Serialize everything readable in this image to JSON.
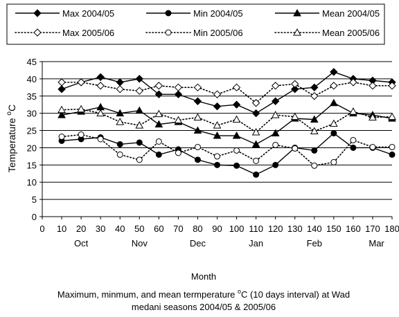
{
  "chart_data": {
    "type": "line",
    "xlabel": "Month",
    "ylabel": "Temperature °C",
    "ylabel_parts": [
      "Temperature ",
      "o",
      "C"
    ],
    "caption_line1_parts": [
      "Maximum, minmum, and mean termperature ",
      "o",
      "C (10 days interval) at Wad"
    ],
    "caption_line2": "medani seasons 2004/05 & 2005/06",
    "xlim": [
      0,
      180
    ],
    "ylim": [
      0,
      45
    ],
    "x_ticks": [
      0,
      10,
      20,
      30,
      40,
      50,
      60,
      70,
      80,
      90,
      100,
      110,
      120,
      130,
      140,
      150,
      160,
      170,
      180
    ],
    "y_ticks": [
      0,
      5,
      10,
      15,
      20,
      25,
      30,
      35,
      40,
      45
    ],
    "month_labels": [
      {
        "label": "Oct",
        "x": 20
      },
      {
        "label": "Nov",
        "x": 50
      },
      {
        "label": "Dec",
        "x": 80
      },
      {
        "label": "Jan",
        "x": 110
      },
      {
        "label": "Feb",
        "x": 140
      },
      {
        "label": "Mar",
        "x": 172
      }
    ],
    "grid": "horizontal",
    "legend_position": "top",
    "x": [
      10,
      20,
      30,
      40,
      50,
      60,
      70,
      80,
      90,
      100,
      110,
      120,
      130,
      140,
      150,
      160,
      170,
      180
    ],
    "series": [
      {
        "name": "Max 2004/05",
        "line": "solid",
        "marker": "diamond",
        "fill": "filled",
        "values": [
          37.0,
          39.0,
          40.5,
          39.0,
          40.0,
          35.5,
          35.5,
          33.5,
          32.0,
          32.5,
          30.0,
          33.5,
          37.0,
          37.5,
          42.0,
          40.0,
          39.5,
          39.0
        ]
      },
      {
        "name": "Min 2004/05",
        "line": "solid",
        "marker": "circle",
        "fill": "filled",
        "values": [
          22.0,
          22.5,
          23.0,
          21.0,
          21.5,
          18.0,
          19.5,
          16.5,
          15.0,
          14.8,
          12.2,
          15.0,
          20.0,
          19.2,
          24.2,
          20.0,
          20.0,
          18.0
        ]
      },
      {
        "name": "Mean 2004/05",
        "line": "solid",
        "marker": "triangle",
        "fill": "filled",
        "values": [
          29.5,
          30.5,
          31.8,
          30.0,
          30.8,
          26.8,
          27.5,
          25.0,
          23.5,
          23.5,
          21.0,
          24.2,
          28.5,
          28.2,
          33.0,
          30.0,
          29.5,
          28.5
        ]
      },
      {
        "name": "Max 2005/06",
        "line": "dotted",
        "marker": "diamond",
        "fill": "open",
        "values": [
          39.0,
          39.0,
          38.0,
          37.0,
          36.5,
          38.0,
          37.5,
          37.5,
          35.5,
          37.5,
          33.0,
          38.0,
          38.5,
          35.0,
          38.0,
          39.0,
          38.0,
          38.0
        ]
      },
      {
        "name": "Min 2005/06",
        "line": "dotted",
        "marker": "circle",
        "fill": "open",
        "values": [
          23.2,
          23.8,
          22.5,
          18.0,
          16.5,
          21.8,
          18.5,
          20.2,
          17.5,
          19.2,
          16.2,
          20.8,
          19.8,
          14.8,
          15.8,
          22.2,
          20.2,
          20.2
        ]
      },
      {
        "name": "Mean 2005/06",
        "line": "dotted",
        "marker": "triangle",
        "fill": "open",
        "values": [
          31.0,
          31.2,
          30.0,
          27.5,
          26.5,
          29.8,
          28.0,
          28.8,
          26.5,
          28.2,
          24.5,
          29.5,
          29.0,
          24.8,
          27.0,
          30.5,
          28.8,
          29.0
        ]
      }
    ]
  }
}
